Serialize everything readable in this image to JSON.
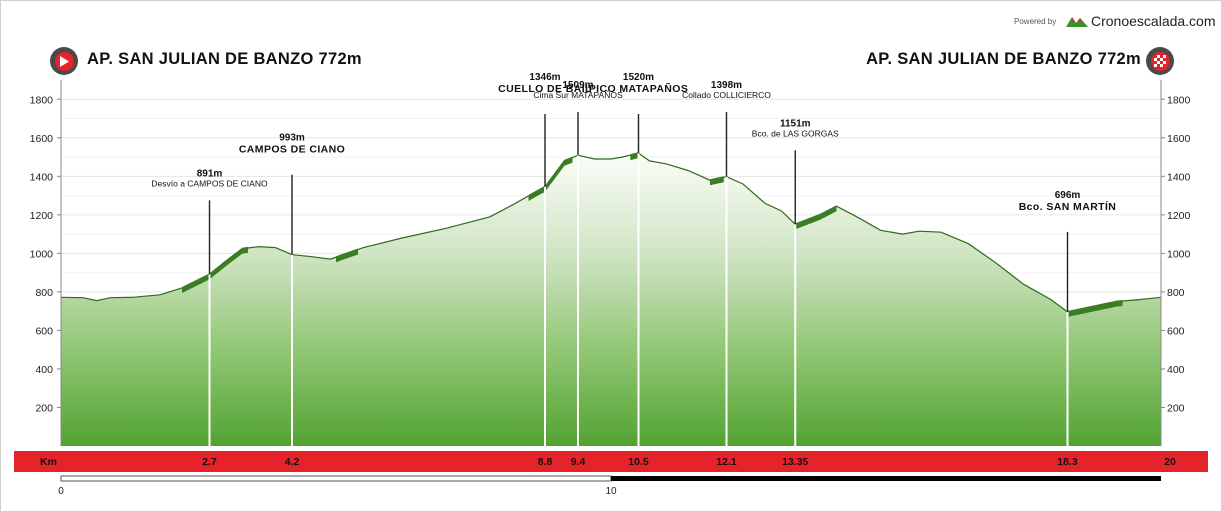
{
  "header": {
    "powered_by": "Powered by",
    "brand": "Cronoescalada.com",
    "start_title": "AP. SAN JULIAN DE BANZO 772m",
    "end_title": "AP. SAN JULIAN DE BANZO 772m",
    "start_icon": "play-icon",
    "end_icon": "checkered-flag-icon"
  },
  "chart_data": {
    "type": "area",
    "x_unit_label": "Km",
    "xlim": [
      0,
      20
    ],
    "ylim": [
      0,
      1900
    ],
    "y_ticks": [
      200,
      400,
      600,
      800,
      1000,
      1200,
      1400,
      1600,
      1800
    ],
    "grid": true,
    "colors": {
      "fill_top": "#f4f8f0",
      "fill_bottom": "#55a535",
      "steep": "#3a7d22",
      "bar": "#e4232b"
    },
    "profile": [
      {
        "x": 0,
        "y": 772
      },
      {
        "x": 0.4,
        "y": 770
      },
      {
        "x": 0.65,
        "y": 755
      },
      {
        "x": 0.9,
        "y": 770
      },
      {
        "x": 1.3,
        "y": 772
      },
      {
        "x": 1.8,
        "y": 785
      },
      {
        "x": 2.2,
        "y": 820
      },
      {
        "x": 2.7,
        "y": 891
      },
      {
        "x": 3.0,
        "y": 960
      },
      {
        "x": 3.3,
        "y": 1025
      },
      {
        "x": 3.6,
        "y": 1035
      },
      {
        "x": 3.9,
        "y": 1030
      },
      {
        "x": 4.2,
        "y": 993
      },
      {
        "x": 4.5,
        "y": 985
      },
      {
        "x": 4.9,
        "y": 970
      },
      {
        "x": 5.5,
        "y": 1030
      },
      {
        "x": 6.2,
        "y": 1080
      },
      {
        "x": 7.0,
        "y": 1130
      },
      {
        "x": 7.8,
        "y": 1190
      },
      {
        "x": 8.2,
        "y": 1250
      },
      {
        "x": 8.8,
        "y": 1346
      },
      {
        "x": 9.15,
        "y": 1480
      },
      {
        "x": 9.4,
        "y": 1509
      },
      {
        "x": 9.7,
        "y": 1490
      },
      {
        "x": 10.0,
        "y": 1490
      },
      {
        "x": 10.2,
        "y": 1500
      },
      {
        "x": 10.5,
        "y": 1520
      },
      {
        "x": 10.7,
        "y": 1480
      },
      {
        "x": 11.0,
        "y": 1465
      },
      {
        "x": 11.4,
        "y": 1430
      },
      {
        "x": 11.8,
        "y": 1380
      },
      {
        "x": 12.1,
        "y": 1398
      },
      {
        "x": 12.4,
        "y": 1360
      },
      {
        "x": 12.8,
        "y": 1260
      },
      {
        "x": 13.1,
        "y": 1220
      },
      {
        "x": 13.35,
        "y": 1151
      },
      {
        "x": 13.8,
        "y": 1200
      },
      {
        "x": 14.1,
        "y": 1245
      },
      {
        "x": 14.5,
        "y": 1185
      },
      {
        "x": 14.9,
        "y": 1120
      },
      {
        "x": 15.3,
        "y": 1100
      },
      {
        "x": 15.6,
        "y": 1115
      },
      {
        "x": 16.0,
        "y": 1110
      },
      {
        "x": 16.5,
        "y": 1050
      },
      {
        "x": 17.0,
        "y": 950
      },
      {
        "x": 17.5,
        "y": 840
      },
      {
        "x": 18.0,
        "y": 760
      },
      {
        "x": 18.3,
        "y": 696
      },
      {
        "x": 18.7,
        "y": 720
      },
      {
        "x": 19.2,
        "y": 750
      },
      {
        "x": 19.6,
        "y": 760
      },
      {
        "x": 20.0,
        "y": 772
      }
    ],
    "steep_segments": [
      [
        2.2,
        3.4
      ],
      [
        5.0,
        5.4
      ],
      [
        8.5,
        9.3
      ],
      [
        10.35,
        10.5
      ],
      [
        11.8,
        12.05
      ],
      [
        13.35,
        14.1
      ],
      [
        18.3,
        19.3
      ]
    ],
    "landmarks": [
      {
        "km": "2.7",
        "x": 2.7,
        "elevation": "891m",
        "name": "Desvío a CAMPOS DE CIANO",
        "major": false
      },
      {
        "km": "4.2",
        "x": 4.2,
        "elevation": "993m",
        "name": "CAMPOS DE CIANO",
        "major": true
      },
      {
        "km": "8.8",
        "x": 8.8,
        "elevation": "1346m",
        "name": "CUELLO DE BAIL",
        "major": true
      },
      {
        "km": "9.4",
        "x": 9.4,
        "elevation": "1509m",
        "name": "Cima Sur MATAPAÑOS",
        "major": false
      },
      {
        "km": "10.5",
        "x": 10.5,
        "elevation": "1520m",
        "name": "PICO MATAPAÑOS",
        "major": true
      },
      {
        "km": "12.1",
        "x": 12.1,
        "elevation": "1398m",
        "name": "Collado COLLICIERCO",
        "major": false
      },
      {
        "km": "13.35",
        "x": 13.35,
        "elevation": "1151m",
        "name": "Bco. de LAS GORGAS",
        "major": false
      },
      {
        "km": "18.3",
        "x": 18.3,
        "elevation": "696m",
        "name": "Bco. SAN MARTÍN",
        "major": true
      }
    ],
    "end_km": "20",
    "scale_labels": [
      "0",
      "10"
    ]
  }
}
